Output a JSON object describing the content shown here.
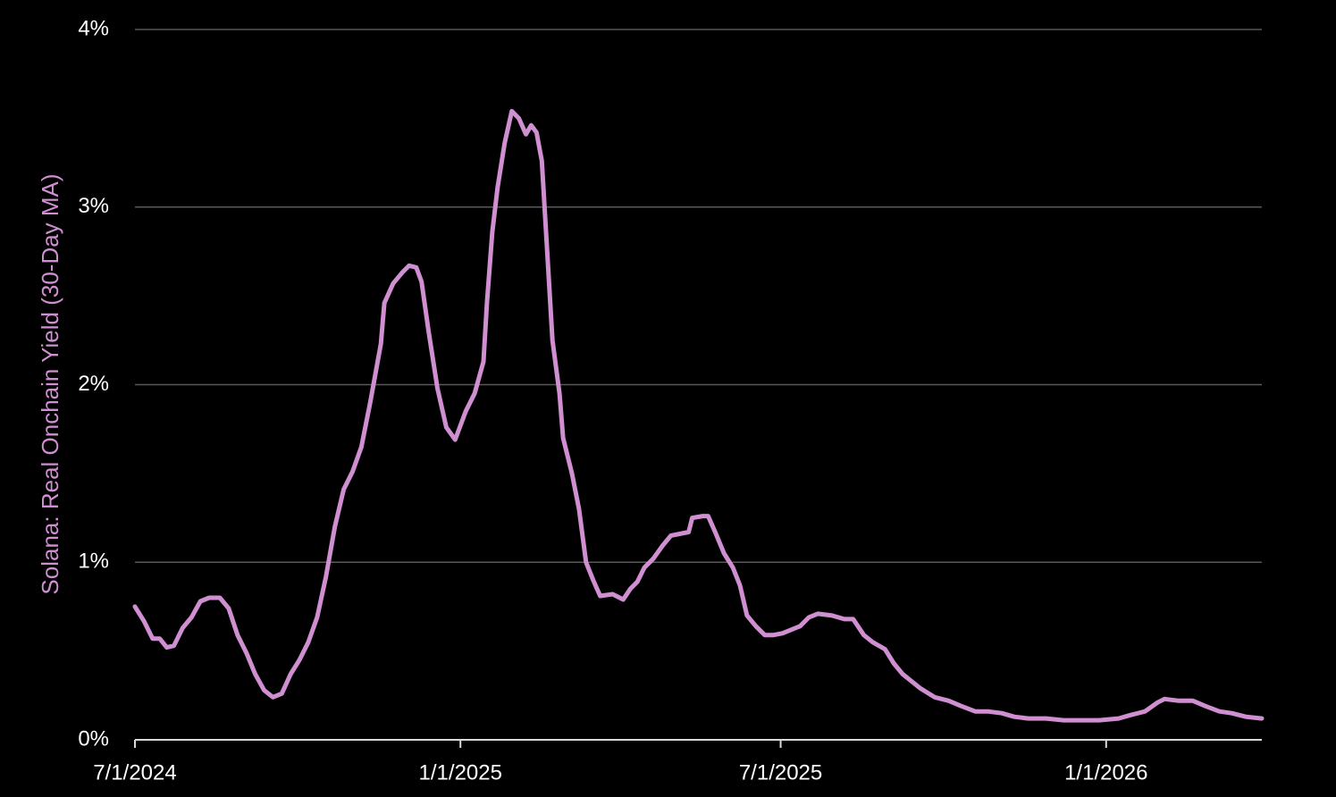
{
  "chart_data": {
    "type": "line",
    "ylabel": "Solana: Real Onchain Yield (30-Day MA)",
    "color": "#d08fd0",
    "grid": true,
    "xlim": [
      "7/1/2024",
      "3/30/2026"
    ],
    "xticks": [
      "7/1/2024",
      "1/1/2025",
      "7/1/2025",
      "1/1/2026"
    ],
    "ylim": [
      0,
      4
    ],
    "yticks": [
      {
        "value": 0,
        "label": "0%"
      },
      {
        "value": 1,
        "label": "1%"
      },
      {
        "value": 2,
        "label": "2%"
      },
      {
        "value": 3,
        "label": "3%"
      },
      {
        "value": 4,
        "label": "4%"
      }
    ],
    "x": [
      "7/1/2024",
      "7/6/2024",
      "7/11/2024",
      "7/15/2024",
      "7/19/2024",
      "7/23/2024",
      "7/28/2024",
      "8/2/2024",
      "8/7/2024",
      "8/12/2024",
      "8/18/2024",
      "8/23/2024",
      "8/28/2024",
      "9/2/2024",
      "9/7/2024",
      "9/12/2024",
      "9/17/2024",
      "9/22/2024",
      "9/27/2024",
      "10/2/2024",
      "10/7/2024",
      "10/12/2024",
      "10/17/2024",
      "10/22/2024",
      "10/27/2024",
      "11/1/2024",
      "11/6/2024",
      "11/11/2024",
      "11/17/2024",
      "11/19/2024",
      "11/24/2024",
      "11/29/2024",
      "12/3/2024",
      "12/7/2024",
      "12/10/2024",
      "12/14/2024",
      "12/19/2024",
      "12/24/2024",
      "12/29/2024",
      "1/4/2025",
      "1/9/2025",
      "1/14/2025",
      "1/16/2025",
      "1/19/2025",
      "1/22/2025",
      "1/26/2025",
      "1/30/2025",
      "2/3/2025",
      "2/7/2025",
      "2/10/2025",
      "2/13/2025",
      "2/16/2025",
      "2/19/2025",
      "2/22/2025",
      "2/26/2025",
      "2/28/2025",
      "3/5/2025",
      "3/9/2025",
      "3/13/2025",
      "3/17/2025",
      "3/21/2025",
      "3/28/2025",
      "4/3/2025",
      "4/7/2025",
      "4/11/2025",
      "4/15/2025",
      "4/20/2025",
      "4/25/2025",
      "4/30/2025",
      "5/5/2025",
      "5/10/2025",
      "5/12/2025",
      "5/18/2025",
      "5/21/2025",
      "5/25/2025",
      "5/30/2025",
      "6/4/2025",
      "6/8/2025",
      "6/12/2025",
      "6/17/2025",
      "6/22/2025",
      "6/27/2025",
      "7/2/2025",
      "7/7/2025",
      "7/12/2025",
      "7/17/2025",
      "7/22/2025",
      "7/30/2025",
      "8/6/2025",
      "8/11/2025",
      "8/17/2025",
      "8/22/2025",
      "8/29/2025",
      "9/3/2025",
      "9/8/2025",
      "9/13/2025",
      "9/18/2025",
      "9/26/2025",
      "10/4/2025",
      "10/11/2025",
      "10/19/2025",
      "10/26/2025",
      "11/3/2025",
      "11/10/2025",
      "11/18/2025",
      "11/28/2025",
      "12/8/2025",
      "12/18/2025",
      "12/28/2025",
      "1/8/2026",
      "1/15/2026",
      "1/23/2026",
      "1/30/2026",
      "2/3/2026",
      "2/11/2026",
      "2/19/2026",
      "2/26/2026",
      "3/6/2026",
      "3/13/2026",
      "3/21/2026",
      "3/30/2026"
    ],
    "values": [
      0.75,
      0.67,
      0.57,
      0.57,
      0.52,
      0.53,
      0.63,
      0.69,
      0.78,
      0.8,
      0.8,
      0.74,
      0.59,
      0.49,
      0.37,
      0.28,
      0.24,
      0.26,
      0.37,
      0.45,
      0.55,
      0.69,
      0.92,
      1.2,
      1.41,
      1.51,
      1.65,
      1.9,
      2.23,
      2.46,
      2.57,
      2.63,
      2.67,
      2.66,
      2.58,
      2.3,
      1.98,
      1.76,
      1.69,
      1.85,
      1.95,
      2.13,
      2.46,
      2.86,
      3.11,
      3.36,
      3.54,
      3.5,
      3.41,
      3.46,
      3.42,
      3.26,
      2.76,
      2.25,
      1.95,
      1.7,
      1.5,
      1.3,
      1.0,
      0.9,
      0.81,
      0.82,
      0.79,
      0.85,
      0.89,
      0.97,
      1.02,
      1.09,
      1.15,
      1.16,
      1.17,
      1.25,
      1.26,
      1.26,
      1.17,
      1.05,
      0.97,
      0.87,
      0.7,
      0.64,
      0.59,
      0.59,
      0.6,
      0.62,
      0.64,
      0.69,
      0.71,
      0.7,
      0.68,
      0.68,
      0.59,
      0.55,
      0.51,
      0.43,
      0.37,
      0.33,
      0.29,
      0.24,
      0.22,
      0.19,
      0.16,
      0.16,
      0.15,
      0.13,
      0.12,
      0.12,
      0.11,
      0.11,
      0.11,
      0.12,
      0.14,
      0.16,
      0.21,
      0.23,
      0.22,
      0.22,
      0.19,
      0.16,
      0.15,
      0.13,
      0.12
    ]
  }
}
